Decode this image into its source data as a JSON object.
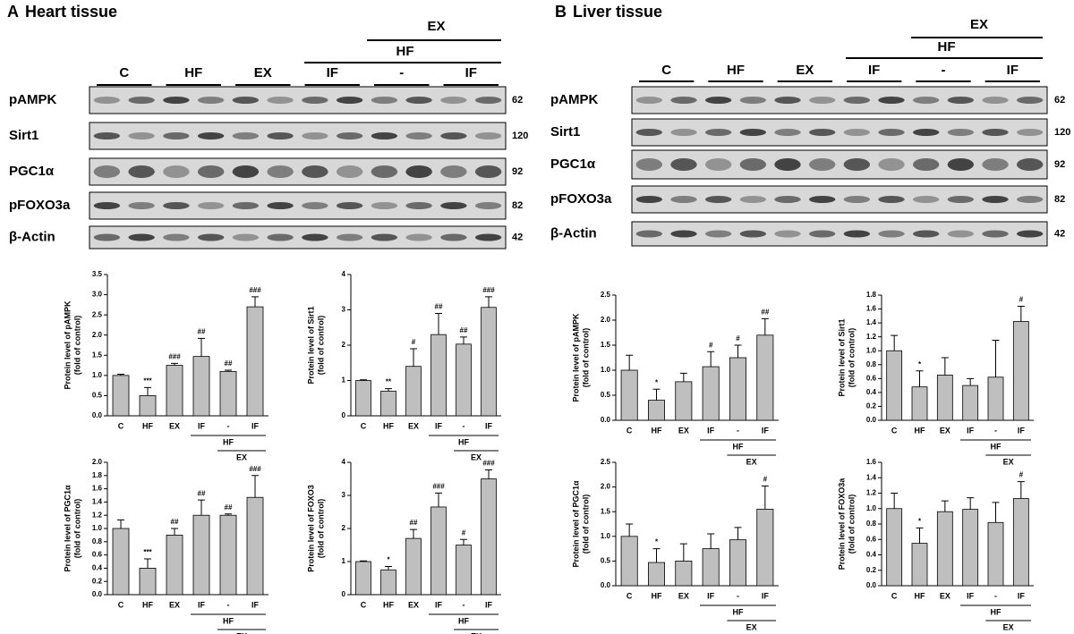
{
  "panels": [
    {
      "label": "A",
      "title": "Heart tissue",
      "header": {
        "top": "EX",
        "middle": "HF",
        "groups": [
          "C",
          "HF",
          "EX",
          "IF",
          "-",
          "IF"
        ]
      },
      "rows": [
        {
          "name": "pAMPK",
          "mw": "62"
        },
        {
          "name": "Sirt1",
          "mw": "120"
        },
        {
          "name": "PGC1α",
          "mw": "92"
        },
        {
          "name": "pFOXO3a",
          "mw": "82"
        },
        {
          "name": "β-Actin",
          "mw": "42"
        }
      ]
    },
    {
      "label": "B",
      "title": "Liver tissue",
      "header": {
        "top": "EX",
        "middle": "HF",
        "groups": [
          "C",
          "HF",
          "EX",
          "IF",
          "-",
          "IF"
        ]
      },
      "rows": [
        {
          "name": "pAMPK",
          "mw": "62"
        },
        {
          "name": "Sirt1",
          "mw": "120"
        },
        {
          "name": "PGC1α",
          "mw": "92"
        },
        {
          "name": "pFOXO3a",
          "mw": "82"
        },
        {
          "name": "β-Actin",
          "mw": "42"
        }
      ]
    }
  ],
  "chart_data": [
    {
      "type": "bar",
      "ylabel": "Protein level of pAMPK",
      "ylabel2": "(fold of control)",
      "color": "#bfbfbf",
      "categories": [
        "C",
        "HF",
        "EX",
        "IF",
        "-",
        "IF"
      ],
      "x_groups": [
        "HF",
        "EX"
      ],
      "values": [
        1.0,
        0.5,
        1.25,
        1.47,
        1.1,
        2.7
      ],
      "errors": [
        0.03,
        0.2,
        0.05,
        0.45,
        0.03,
        0.25
      ],
      "annotations": [
        null,
        "***",
        "###",
        "##",
        "##",
        "###"
      ],
      "ylim": [
        0,
        3.5
      ],
      "yticks": [
        {
          "value": 0,
          "label": "0.0"
        },
        0.5,
        {
          "value": 1,
          "label": "1.0"
        },
        1.5,
        {
          "value": 2,
          "label": "2.0"
        },
        2.5,
        {
          "value": 3,
          "label": "3.0"
        },
        3.5
      ]
    },
    {
      "type": "bar",
      "ylabel": "Protein level of Sirt1",
      "ylabel2": "(fold of control)",
      "color": "#bfbfbf",
      "categories": [
        "C",
        "HF",
        "EX",
        "IF",
        "-",
        "IF"
      ],
      "x_groups": [
        "HF",
        "EX"
      ],
      "values": [
        1.0,
        0.7,
        1.4,
        2.3,
        2.03,
        3.07
      ],
      "errors": [
        0.02,
        0.07,
        0.5,
        0.6,
        0.2,
        0.3
      ],
      "annotations": [
        null,
        "**",
        "#",
        "##",
        "##",
        "###"
      ],
      "ylim": [
        0,
        4
      ],
      "yticks": [
        0,
        1,
        2,
        3,
        4
      ]
    },
    {
      "type": "bar",
      "ylabel": "Protein level of PGC1α",
      "ylabel2": "(fold of control)",
      "color": "#bfbfbf",
      "categories": [
        "C",
        "HF",
        "EX",
        "IF",
        "-",
        "IF"
      ],
      "x_groups": [
        "HF",
        "EX"
      ],
      "values": [
        1.0,
        0.4,
        0.9,
        1.2,
        1.2,
        1.47
      ],
      "errors": [
        0.13,
        0.14,
        0.1,
        0.23,
        0.02,
        0.33
      ],
      "annotations": [
        null,
        "***",
        "##",
        "##",
        "##",
        "###"
      ],
      "ylim": [
        0,
        2
      ],
      "yticks": [
        {
          "value": 0,
          "label": "0.0"
        },
        0.2,
        0.4,
        0.6,
        0.8,
        {
          "value": 1,
          "label": "1.0"
        },
        1.2,
        1.4,
        1.6,
        1.8,
        {
          "value": 2,
          "label": "2.0"
        }
      ]
    },
    {
      "type": "bar",
      "ylabel": "Protein level of FOXO3",
      "ylabel2": "(fold of control)",
      "color": "#bfbfbf",
      "categories": [
        "C",
        "HF",
        "EX",
        "IF",
        "-",
        "IF"
      ],
      "x_groups": [
        "HF",
        "EX"
      ],
      "values": [
        1.0,
        0.75,
        1.7,
        2.65,
        1.5,
        3.5
      ],
      "errors": [
        0.02,
        0.1,
        0.27,
        0.42,
        0.17,
        0.27
      ],
      "annotations": [
        null,
        "*",
        "##",
        "###",
        "#",
        "###"
      ],
      "ylim": [
        0,
        4
      ],
      "yticks": [
        0,
        1,
        2,
        3,
        4
      ]
    },
    {
      "type": "bar",
      "ylabel": "Protein level of pAMPK",
      "ylabel2": "(fold of control)",
      "color": "#bfbfbf",
      "categories": [
        "C",
        "HF",
        "EX",
        "IF",
        "-",
        "IF"
      ],
      "x_groups": [
        "HF",
        "EX"
      ],
      "values": [
        1.0,
        0.4,
        0.77,
        1.07,
        1.25,
        1.7
      ],
      "errors": [
        0.3,
        0.22,
        0.17,
        0.3,
        0.25,
        0.33
      ],
      "annotations": [
        null,
        "*",
        null,
        "#",
        "#",
        "##"
      ],
      "ylim": [
        0,
        2.5
      ],
      "yticks": [
        {
          "value": 0,
          "label": "0.0"
        },
        0.5,
        {
          "value": 1,
          "label": "1.0"
        },
        1.5,
        {
          "value": 2,
          "label": "2.0"
        },
        2.5
      ]
    },
    {
      "type": "bar",
      "ylabel": "Protein level of Sirt1",
      "ylabel2": "(fold of control)",
      "color": "#bfbfbf",
      "categories": [
        "C",
        "HF",
        "EX",
        "IF",
        "-",
        "IF"
      ],
      "x_groups": [
        "HF",
        "EX"
      ],
      "values": [
        1.0,
        0.48,
        0.65,
        0.5,
        0.62,
        1.42
      ],
      "errors": [
        0.22,
        0.23,
        0.25,
        0.1,
        0.53,
        0.22
      ],
      "annotations": [
        null,
        "*",
        null,
        null,
        null,
        "#"
      ],
      "ylim": [
        0,
        1.8
      ],
      "yticks": [
        {
          "value": 0,
          "label": "0.0"
        },
        0.2,
        0.4,
        0.6,
        0.8,
        {
          "value": 1,
          "label": "1.0"
        },
        1.2,
        1.4,
        1.6,
        1.8
      ]
    },
    {
      "type": "bar",
      "ylabel": "Protein level of PGC1α",
      "ylabel2": "(fold of control)",
      "color": "#bfbfbf",
      "categories": [
        "C",
        "HF",
        "EX",
        "IF",
        "-",
        "IF"
      ],
      "x_groups": [
        "HF",
        "EX"
      ],
      "values": [
        1.0,
        0.47,
        0.5,
        0.75,
        0.93,
        1.55
      ],
      "errors": [
        0.25,
        0.28,
        0.35,
        0.3,
        0.25,
        0.47
      ],
      "annotations": [
        null,
        "*",
        null,
        null,
        null,
        "#"
      ],
      "ylim": [
        0,
        2.5
      ],
      "yticks": [
        {
          "value": 0,
          "label": "0.0"
        },
        0.5,
        {
          "value": 1,
          "label": "1.0"
        },
        1.5,
        {
          "value": 2,
          "label": "2.0"
        },
        2.5
      ]
    },
    {
      "type": "bar",
      "ylabel": "Protein level of FOXO3a",
      "ylabel2": "(fold of control)",
      "color": "#bfbfbf",
      "categories": [
        "C",
        "HF",
        "EX",
        "IF",
        "-",
        "IF"
      ],
      "x_groups": [
        "HF",
        "EX"
      ],
      "values": [
        1.0,
        0.55,
        0.96,
        0.99,
        0.82,
        1.13
      ],
      "errors": [
        0.2,
        0.2,
        0.14,
        0.15,
        0.26,
        0.22
      ],
      "annotations": [
        null,
        "*",
        null,
        null,
        null,
        "#"
      ],
      "ylim": [
        0,
        1.6
      ],
      "yticks": [
        {
          "value": 0,
          "label": "0.0"
        },
        0.2,
        0.4,
        0.6,
        0.8,
        {
          "value": 1,
          "label": "1.0"
        },
        1.2,
        1.4,
        1.6
      ]
    }
  ]
}
